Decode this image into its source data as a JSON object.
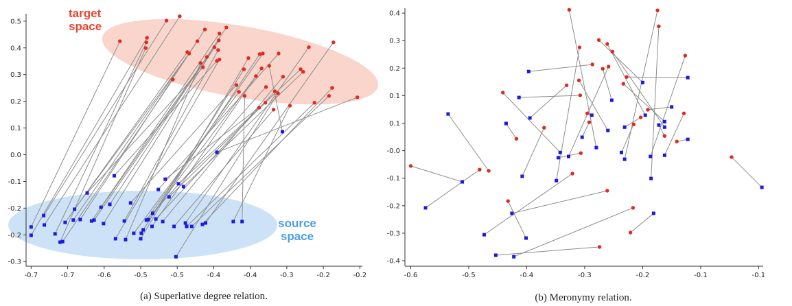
{
  "chart_data": [
    {
      "type": "scatter",
      "caption": "(a) Superlative degree relation.",
      "annotations": [
        {
          "text": "target space",
          "color": "#e8442e"
        },
        {
          "text": "source space",
          "color": "#4a9de6"
        }
      ],
      "xlim": [
        -0.718,
        -0.184
      ],
      "ylim": [
        -0.356,
        0.526
      ],
      "xticks": [
        {
          "value": -0.71,
          "label": "-0.7"
        },
        {
          "value": -0.652,
          "label": "-0.7"
        },
        {
          "value": -0.594,
          "label": "-0.6"
        },
        {
          "value": -0.536,
          "label": "-0.5"
        },
        {
          "value": -0.478,
          "label": "-0.5"
        },
        {
          "value": -0.42,
          "label": "-0.4"
        },
        {
          "value": -0.362,
          "label": "-0.4"
        },
        {
          "value": -0.304,
          "label": "-0.3"
        },
        {
          "value": -0.246,
          "label": "-0.2"
        },
        {
          "value": -0.188,
          "label": "-0.2"
        }
      ],
      "yticks": [
        0.5,
        {
          "value": 0.4067,
          "label": "0.4"
        },
        {
          "value": 0.3134,
          "label": "0.3"
        },
        {
          "value": 0.2201,
          "label": "0.2"
        },
        {
          "value": 0.1268,
          "label": "0.1"
        },
        {
          "value": 0.0335,
          "label": "0.0"
        },
        {
          "value": -0.0598,
          "label": "-0.1"
        },
        {
          "value": -0.1531,
          "label": "-0.2"
        },
        {
          "value": -0.2464,
          "label": "-0.2"
        },
        {
          "value": -0.3397,
          "label": "-0.3"
        }
      ],
      "link_color": "#8c8c8c",
      "series": [
        {
          "color": "#1a1ae0",
          "marker": "square",
          "x": [
            -0.71,
            -0.71,
            -0.69,
            -0.689,
            -0.672,
            -0.664,
            -0.66,
            -0.656,
            -0.641,
            -0.643,
            -0.632,
            -0.621,
            -0.614,
            -0.61,
            -0.595,
            -0.599,
            -0.585,
            -0.578,
            -0.576,
            -0.56,
            -0.562,
            -0.552,
            -0.547,
            -0.535,
            -0.536,
            -0.532,
            -0.527,
            -0.524,
            -0.518,
            -0.517,
            -0.512,
            -0.508,
            -0.501,
            -0.497,
            -0.491,
            -0.483,
            -0.48,
            -0.476,
            -0.468,
            -0.465,
            -0.463,
            -0.455,
            -0.438,
            -0.433,
            -0.415,
            -0.389,
            -0.375,
            -0.311
          ],
          "y": [
            -0.219,
            -0.248,
            -0.179,
            -0.212,
            -0.243,
            -0.272,
            -0.27,
            -0.203,
            -0.157,
            -0.195,
            -0.193,
            -0.1,
            -0.198,
            -0.195,
            -0.207,
            -0.15,
            -0.14,
            -0.04,
            -0.26,
            -0.263,
            -0.198,
            -0.135,
            -0.241,
            -0.241,
            -0.26,
            -0.229,
            -0.195,
            -0.193,
            -0.217,
            -0.171,
            -0.191,
            -0.088,
            -0.2,
            -0.052,
            -0.114,
            -0.217,
            -0.323,
            -0.068,
            -0.078,
            -0.205,
            -0.217,
            -0.217,
            -0.21,
            -0.205,
            0.042,
            -0.2,
            -0.2,
            0.114
          ]
        },
        {
          "color": "#e02a1e",
          "marker": "circle",
          "x": [
            -0.569,
            -0.526,
            -0.495,
            -0.474,
            -0.527,
            -0.528,
            -0.485,
            -0.462,
            -0.459,
            -0.446,
            -0.434,
            -0.437,
            -0.431,
            -0.419,
            -0.412,
            -0.411,
            -0.4,
            -0.415,
            -0.411,
            -0.441,
            -0.413,
            -0.384,
            -0.38,
            -0.372,
            -0.365,
            -0.347,
            -0.342,
            -0.353,
            -0.344,
            -0.337,
            -0.323,
            -0.317,
            -0.31,
            -0.348,
            -0.338,
            -0.325,
            -0.318,
            -0.282,
            -0.278,
            -0.269,
            -0.26,
            -0.237,
            -0.232,
            -0.23,
            -0.192,
            -0.299,
            -0.371,
            -0.332
          ],
          "y": [
            0.43,
            0.442,
            0.502,
            0.517,
            0.426,
            0.406,
            0.296,
            0.392,
            0.387,
            0.43,
            0.471,
            0.339,
            0.375,
            0.409,
            0.433,
            0.457,
            0.478,
            0.361,
            0.366,
            0.354,
            0.399,
            0.277,
            0.253,
            0.332,
            0.371,
            0.385,
            0.387,
            0.308,
            0.335,
            0.27,
            0.255,
            0.387,
            0.306,
            0.198,
            0.215,
            0.191,
            0.248,
            0.332,
            0.323,
            0.409,
            0.215,
            0.239,
            0.267,
            0.426,
            0.234,
            0.205,
            0.239,
            0.344
          ]
        }
      ]
    },
    {
      "type": "scatter",
      "caption": "(b) Meronymy relation.",
      "xlim": [
        -0.604,
        -0.048
      ],
      "ylim": [
        -0.413,
        0.431
      ],
      "xticks": [
        {
          "value": -0.595,
          "label": "-0.6"
        },
        {
          "value": -0.505,
          "label": "-0.5"
        },
        {
          "value": -0.415,
          "label": "-0.4"
        },
        {
          "value": -0.325,
          "label": "-0.3"
        },
        {
          "value": -0.235,
          "label": "-0.2"
        },
        {
          "value": -0.145,
          "label": "-0.1"
        },
        {
          "value": -0.055,
          "label": "-0.1"
        }
      ],
      "yticks": [
        {
          "value": 0.415,
          "label": "0.4"
        },
        {
          "value": 0.325,
          "label": "0.3"
        },
        {
          "value": 0.235,
          "label": "0.2"
        },
        {
          "value": 0.145,
          "label": "0.1"
        },
        {
          "value": 0.055,
          "label": "0.1"
        },
        {
          "value": -0.035,
          "label": "-0.0"
        },
        {
          "value": -0.125,
          "label": "-0.1"
        },
        {
          "value": -0.215,
          "label": "-0.2"
        },
        {
          "value": -0.305,
          "label": "-0.3"
        },
        {
          "value": -0.395,
          "label": "-0.4"
        }
      ],
      "link_color": "#8c8c8c",
      "series": [
        {
          "color": "#1a1ae0",
          "marker": "square",
          "x": [
            -0.515,
            -0.05,
            -0.307,
            -0.263,
            -0.222,
            -0.369,
            -0.235,
            -0.231,
            -0.201,
            -0.35,
            -0.412,
            -0.283,
            -0.223,
            -0.427,
            -0.165,
            -0.201,
            -0.289,
            -0.41,
            -0.363,
            -0.422,
            -0.447,
            -0.314,
            -0.329,
            -0.263,
            -0.19,
            -0.21,
            -0.165,
            -0.201,
            -0.268,
            -0.537,
            -0.416,
            -0.481,
            -0.438,
            -0.435,
            -0.218,
            -0.463,
            -0.366,
            -0.572
          ],
          "y": [
            -0.137,
            -0.155,
            -0.025,
            -0.063,
            -0.126,
            -0.133,
            0.188,
            0.081,
            0.042,
            -0.054,
            0.224,
            0.13,
            -0.054,
            0.139,
            0.204,
            0.06,
            0.031,
            0.072,
            -0.041,
            -0.119,
            0.054,
            0.081,
            0.009,
            0.042,
            0.108,
            0.049,
            0.002,
            -0.05,
            -0.041,
            0.085,
            -0.321,
            -0.31,
            -0.24,
            -0.382,
            -0.24,
            -0.377,
            -0.058,
            -0.222
          ]
        },
        {
          "color": "#e02a1e",
          "marker": "circle",
          "x": [
            -0.595,
            -0.097,
            -0.349,
            -0.212,
            -0.21,
            -0.333,
            -0.303,
            -0.29,
            -0.282,
            -0.288,
            -0.313,
            -0.297,
            -0.169,
            -0.332,
            -0.26,
            -0.265,
            -0.334,
            -0.353,
            -0.452,
            -0.388,
            -0.431,
            -0.321,
            -0.318,
            -0.238,
            -0.227,
            -0.201,
            -0.182,
            -0.171,
            -0.249,
            -0.474,
            -0.444,
            -0.344,
            -0.29,
            -0.25,
            -0.254,
            -0.302,
            -0.331,
            -0.488
          ],
          "y": [
            -0.085,
            -0.056,
            0.426,
            0.424,
            0.372,
            0.303,
            0.327,
            0.314,
            0.289,
            0.24,
            0.247,
            0.233,
            0.276,
            0.146,
            0.206,
            0.184,
            0.195,
            0.179,
            0.155,
            0.04,
            0.004,
            0.087,
            0.058,
            0.074,
            0.099,
            0.013,
            -0.005,
            0.087,
            0.051,
            -0.101,
            -0.2,
            -0.11,
            -0.166,
            -0.222,
            -0.303,
            -0.35,
            -0.043,
            -0.097
          ]
        }
      ]
    }
  ]
}
